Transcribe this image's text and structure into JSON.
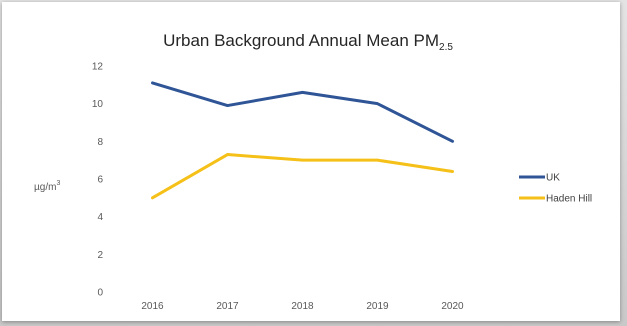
{
  "chart_data": {
    "type": "line",
    "title_main": "Urban Background Annual Mean PM",
    "title_sub": "2.5",
    "ylabel_main": "µg/m",
    "ylabel_sup": "3",
    "categories": [
      "2016",
      "2017",
      "2018",
      "2019",
      "2020"
    ],
    "ylim": [
      0,
      12
    ],
    "yticks": [
      0,
      2,
      4,
      6,
      8,
      10,
      12
    ],
    "grid": false,
    "legend_position": "right",
    "series": [
      {
        "name": "UK",
        "color": "#2f5597",
        "values": [
          11.1,
          9.9,
          10.6,
          10.0,
          8.0
        ]
      },
      {
        "name": "Haden Hill",
        "color": "#f5c018",
        "values": [
          5.0,
          7.3,
          7.0,
          7.0,
          6.4
        ]
      }
    ]
  }
}
